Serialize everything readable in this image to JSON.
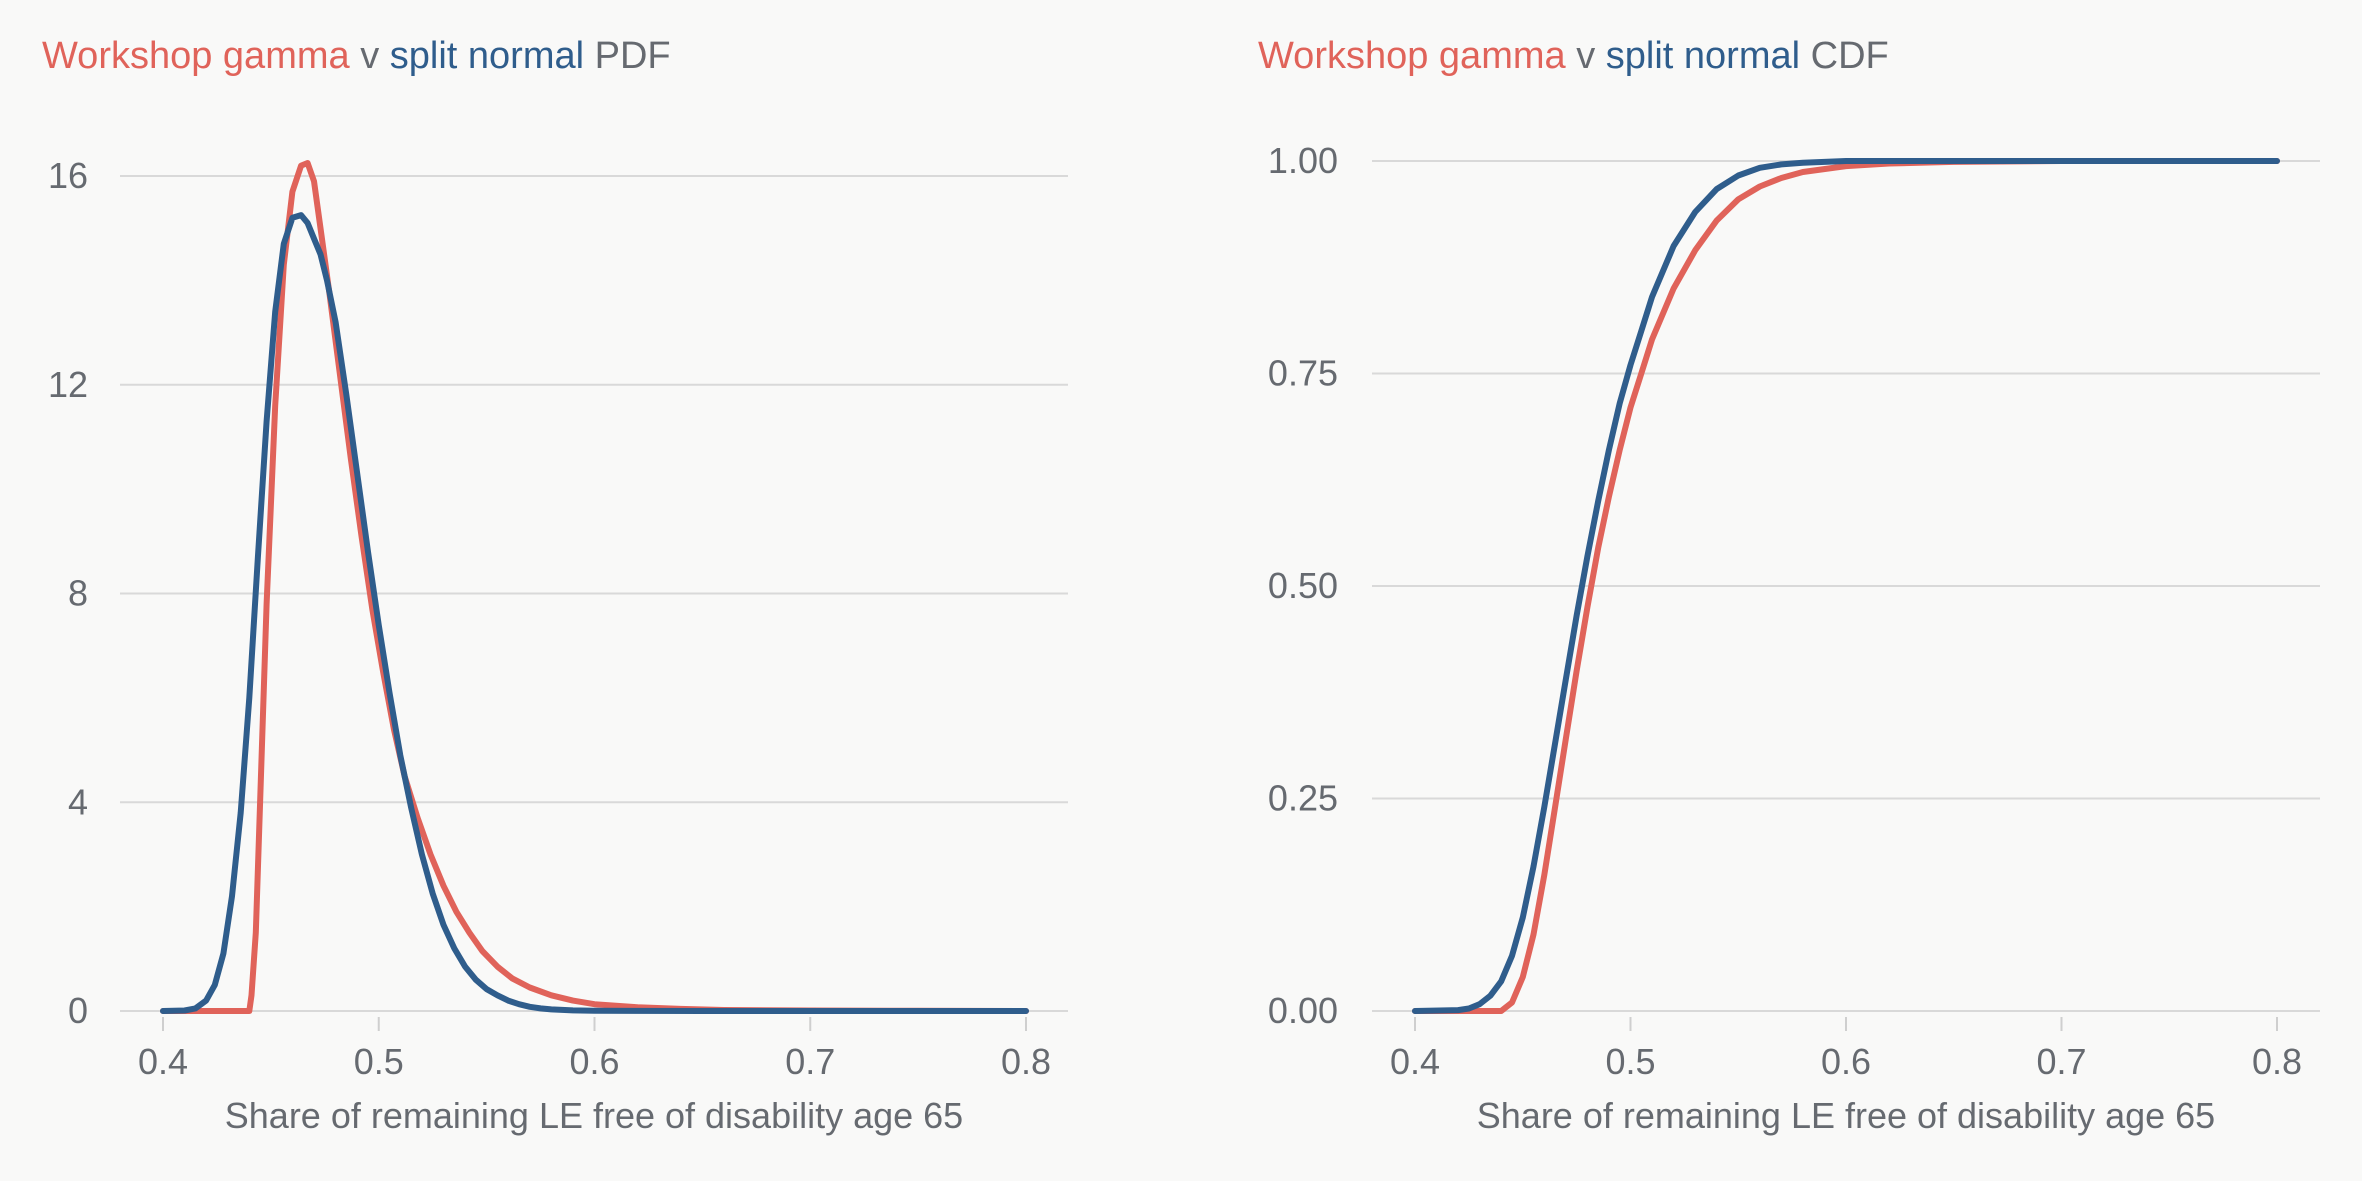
{
  "colors": {
    "gamma": "#e0635a",
    "split_normal": "#2f5d8c",
    "text": "#666a70",
    "grid": "#d9d9d9",
    "background": "#f9f9f8"
  },
  "chart_data": [
    {
      "type": "line",
      "title_parts": [
        {
          "text": "Workshop gamma",
          "color": "#e0635a"
        },
        {
          "text": " v ",
          "color": "#666a70"
        },
        {
          "text": "split normal",
          "color": "#2f5d8c"
        },
        {
          "text": " PDF",
          "color": "#666a70"
        }
      ],
      "xlabel": "Share of remaining LE free of disability age 65",
      "ylabel": "",
      "xlim": [
        0.4,
        0.8
      ],
      "ylim": [
        0,
        16
      ],
      "xticks": [
        0.4,
        0.5,
        0.6,
        0.7,
        0.8
      ],
      "xtick_labels": [
        "0.4",
        "0.5",
        "0.6",
        "0.7",
        "0.8"
      ],
      "yticks": [
        0,
        4,
        8,
        12,
        16
      ],
      "ytick_labels": [
        "0",
        "4",
        "8",
        "12",
        "16"
      ],
      "grid": "horizontal",
      "legend": "none",
      "series": [
        {
          "color": "#e0635a",
          "x": [
            0.4,
            0.44,
            0.441,
            0.443,
            0.445,
            0.448,
            0.452,
            0.456,
            0.46,
            0.464,
            0.467,
            0.47,
            0.473,
            0.477,
            0.482,
            0.487,
            0.492,
            0.497,
            0.502,
            0.507,
            0.512,
            0.518,
            0.524,
            0.53,
            0.536,
            0.542,
            0.548,
            0.555,
            0.562,
            0.57,
            0.58,
            0.59,
            0.6,
            0.62,
            0.64,
            0.66,
            0.7,
            0.75,
            0.8
          ],
          "y": [
            0,
            0,
            0.3,
            1.5,
            4.0,
            7.8,
            11.6,
            14.3,
            15.7,
            16.2,
            16.25,
            15.9,
            15.0,
            13.8,
            12.2,
            10.6,
            9.1,
            7.7,
            6.5,
            5.4,
            4.5,
            3.7,
            3.0,
            2.4,
            1.9,
            1.5,
            1.15,
            0.85,
            0.62,
            0.45,
            0.3,
            0.2,
            0.13,
            0.07,
            0.04,
            0.02,
            0.01,
            0.003,
            0
          ]
        },
        {
          "color": "#2f5d8c",
          "x": [
            0.4,
            0.41,
            0.415,
            0.42,
            0.424,
            0.428,
            0.432,
            0.436,
            0.44,
            0.444,
            0.448,
            0.452,
            0.456,
            0.46,
            0.464,
            0.467,
            0.47,
            0.473,
            0.476,
            0.48,
            0.485,
            0.49,
            0.495,
            0.5,
            0.505,
            0.51,
            0.515,
            0.52,
            0.525,
            0.53,
            0.535,
            0.54,
            0.545,
            0.55,
            0.555,
            0.56,
            0.565,
            0.57,
            0.575,
            0.58,
            0.59,
            0.6,
            0.62,
            0.65,
            0.7,
            0.8
          ],
          "y": [
            0,
            0.01,
            0.05,
            0.2,
            0.5,
            1.1,
            2.2,
            3.8,
            6.0,
            8.7,
            11.3,
            13.4,
            14.7,
            15.2,
            15.25,
            15.1,
            14.8,
            14.5,
            14.0,
            13.2,
            11.8,
            10.3,
            8.8,
            7.4,
            6.1,
            4.9,
            3.9,
            3.0,
            2.25,
            1.65,
            1.2,
            0.85,
            0.6,
            0.42,
            0.3,
            0.2,
            0.13,
            0.08,
            0.05,
            0.03,
            0.012,
            0.005,
            0.001,
            0,
            0,
            0
          ]
        }
      ]
    },
    {
      "type": "line",
      "title_parts": [
        {
          "text": "Workshop gamma",
          "color": "#e0635a"
        },
        {
          "text": " v ",
          "color": "#666a70"
        },
        {
          "text": "split normal",
          "color": "#2f5d8c"
        },
        {
          "text": " CDF",
          "color": "#666a70"
        }
      ],
      "xlabel": "Share of remaining LE free of disability age 65",
      "ylabel": "",
      "xlim": [
        0.4,
        0.8
      ],
      "ylim": [
        0,
        1
      ],
      "xticks": [
        0.4,
        0.5,
        0.6,
        0.7,
        0.8
      ],
      "xtick_labels": [
        "0.4",
        "0.5",
        "0.6",
        "0.7",
        "0.8"
      ],
      "yticks": [
        0,
        0.25,
        0.5,
        0.75,
        1.0
      ],
      "ytick_labels": [
        "0.00",
        "0.25",
        "0.50",
        "0.75",
        "1.00"
      ],
      "grid": "horizontal",
      "legend": "none",
      "series": [
        {
          "color": "#e0635a",
          "x": [
            0.4,
            0.44,
            0.445,
            0.45,
            0.455,
            0.46,
            0.465,
            0.47,
            0.475,
            0.48,
            0.485,
            0.49,
            0.495,
            0.5,
            0.505,
            0.51,
            0.52,
            0.53,
            0.54,
            0.55,
            0.56,
            0.57,
            0.58,
            0.6,
            0.62,
            0.65,
            0.7,
            0.75,
            0.8
          ],
          "y": [
            0,
            0,
            0.01,
            0.04,
            0.09,
            0.16,
            0.24,
            0.32,
            0.4,
            0.475,
            0.545,
            0.605,
            0.66,
            0.71,
            0.75,
            0.79,
            0.85,
            0.895,
            0.93,
            0.955,
            0.97,
            0.98,
            0.987,
            0.994,
            0.997,
            0.999,
            1.0,
            1.0,
            1.0
          ]
        },
        {
          "color": "#2f5d8c",
          "x": [
            0.4,
            0.42,
            0.425,
            0.43,
            0.435,
            0.44,
            0.445,
            0.45,
            0.455,
            0.46,
            0.465,
            0.47,
            0.475,
            0.48,
            0.485,
            0.49,
            0.495,
            0.5,
            0.505,
            0.51,
            0.52,
            0.53,
            0.54,
            0.55,
            0.56,
            0.57,
            0.58,
            0.6,
            0.65,
            0.7,
            0.8
          ],
          "y": [
            0,
            0.001,
            0.003,
            0.008,
            0.018,
            0.035,
            0.065,
            0.11,
            0.17,
            0.24,
            0.315,
            0.39,
            0.465,
            0.535,
            0.6,
            0.66,
            0.715,
            0.76,
            0.8,
            0.84,
            0.9,
            0.94,
            0.967,
            0.983,
            0.992,
            0.996,
            0.998,
            1.0,
            1.0,
            1.0,
            1.0
          ]
        }
      ]
    }
  ]
}
